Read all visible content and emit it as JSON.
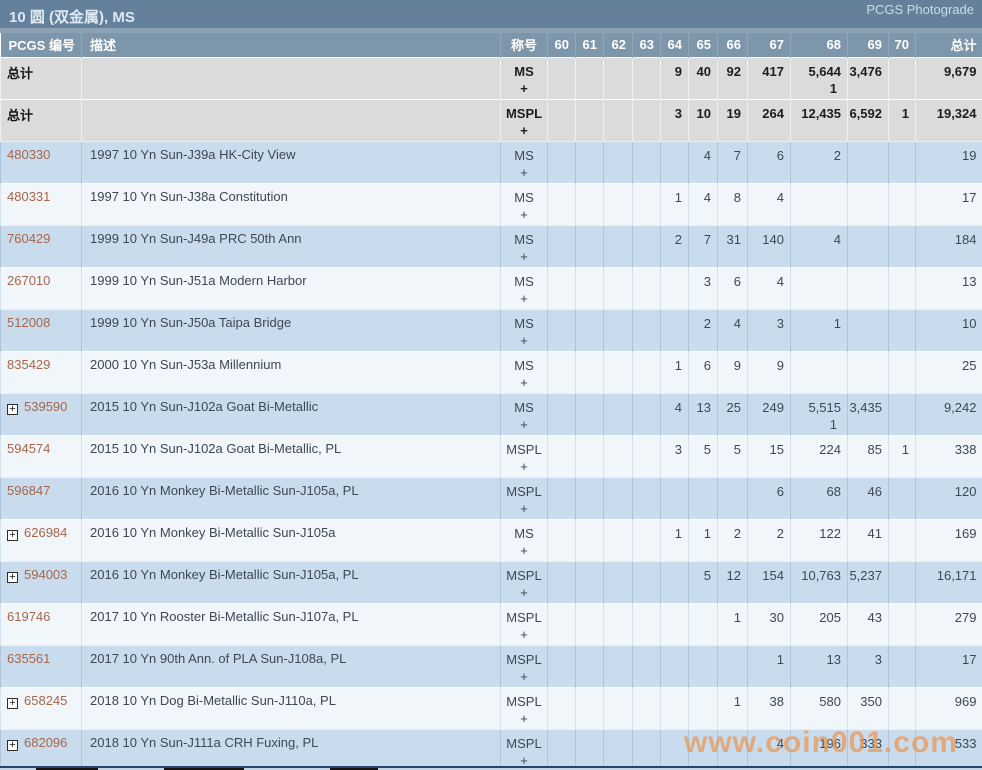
{
  "title_bar": {
    "title": "10 圆 (双金属), MS",
    "photograde": "PCGS Photograde"
  },
  "table": {
    "columns": {
      "pcgs": "PCGS 编号",
      "desc": "描述",
      "designation": "称号",
      "grades": [
        "60",
        "61",
        "62",
        "63",
        "64",
        "65",
        "66",
        "67",
        "68",
        "69",
        "70"
      ],
      "total": "总计"
    },
    "plus": "+",
    "rows": [
      {
        "kind": "total",
        "pcgs": "总计",
        "expand": false,
        "desc": "",
        "designation": "MS",
        "values": {
          "64": "9",
          "65": "40",
          "66": "92",
          "67": "417",
          "68": "5,644",
          "69": "3,476"
        },
        "plus_values": {
          "68": "1"
        },
        "total": "9,679"
      },
      {
        "kind": "total",
        "pcgs": "总计",
        "expand": false,
        "desc": "",
        "designation": "MSPL",
        "values": {
          "64": "3",
          "65": "10",
          "66": "19",
          "67": "264",
          "68": "12,435",
          "69": "6,592",
          "70": "1"
        },
        "plus_values": {},
        "total": "19,324"
      },
      {
        "kind": "data",
        "pcgs": "480330",
        "expand": false,
        "desc": "1997 10 Yn Sun-J39a HK-City View",
        "designation": "MS",
        "values": {
          "65": "4",
          "66": "7",
          "67": "6",
          "68": "2"
        },
        "plus_values": {},
        "total": "19"
      },
      {
        "kind": "data",
        "pcgs": "480331",
        "expand": false,
        "desc": "1997 10 Yn Sun-J38a Constitution",
        "designation": "MS",
        "values": {
          "64": "1",
          "65": "4",
          "66": "8",
          "67": "4"
        },
        "plus_values": {},
        "total": "17"
      },
      {
        "kind": "data",
        "pcgs": "760429",
        "expand": false,
        "desc": "1999 10 Yn Sun-J49a PRC 50th Ann",
        "designation": "MS",
        "values": {
          "64": "2",
          "65": "7",
          "66": "31",
          "67": "140",
          "68": "4"
        },
        "plus_values": {},
        "total": "184"
      },
      {
        "kind": "data",
        "pcgs": "267010",
        "expand": false,
        "desc": "1999 10 Yn Sun-J51a Modern Harbor",
        "designation": "MS",
        "values": {
          "65": "3",
          "66": "6",
          "67": "4"
        },
        "plus_values": {},
        "total": "13"
      },
      {
        "kind": "data",
        "pcgs": "512008",
        "expand": false,
        "desc": "1999 10 Yn Sun-J50a Taipa Bridge",
        "designation": "MS",
        "values": {
          "65": "2",
          "66": "4",
          "67": "3",
          "68": "1"
        },
        "plus_values": {},
        "total": "10"
      },
      {
        "kind": "data",
        "pcgs": "835429",
        "expand": false,
        "desc": "2000 10 Yn Sun-J53a Millennium",
        "designation": "MS",
        "values": {
          "64": "1",
          "65": "6",
          "66": "9",
          "67": "9"
        },
        "plus_values": {},
        "total": "25"
      },
      {
        "kind": "data",
        "pcgs": "539590",
        "expand": true,
        "desc": "2015 10 Yn Sun-J102a Goat Bi-Metallic",
        "designation": "MS",
        "values": {
          "64": "4",
          "65": "13",
          "66": "25",
          "67": "249",
          "68": "5,515",
          "69": "3,435"
        },
        "plus_values": {
          "68": "1"
        },
        "total": "9,242"
      },
      {
        "kind": "data",
        "pcgs": "594574",
        "expand": false,
        "desc": "2015 10 Yn Sun-J102a Goat Bi-Metallic, PL",
        "designation": "MSPL",
        "values": {
          "64": "3",
          "65": "5",
          "66": "5",
          "67": "15",
          "68": "224",
          "69": "85",
          "70": "1"
        },
        "plus_values": {},
        "total": "338"
      },
      {
        "kind": "data",
        "pcgs": "596847",
        "expand": false,
        "desc": "2016 10 Yn Monkey Bi-Metallic Sun-J105a, PL",
        "designation": "MSPL",
        "values": {
          "67": "6",
          "68": "68",
          "69": "46"
        },
        "plus_values": {},
        "total": "120"
      },
      {
        "kind": "data",
        "pcgs": "626984",
        "expand": true,
        "desc": "2016 10 Yn Monkey Bi-Metallic Sun-J105a",
        "designation": "MS",
        "values": {
          "64": "1",
          "65": "1",
          "66": "2",
          "67": "2",
          "68": "122",
          "69": "41"
        },
        "plus_values": {},
        "total": "169"
      },
      {
        "kind": "data",
        "pcgs": "594003",
        "expand": true,
        "desc": "2016 10 Yn Monkey Bi-Metallic Sun-J105a, PL",
        "designation": "MSPL",
        "values": {
          "65": "5",
          "66": "12",
          "67": "154",
          "68": "10,763",
          "69": "5,237"
        },
        "plus_values": {},
        "total": "16,171"
      },
      {
        "kind": "data",
        "pcgs": "619746",
        "expand": false,
        "desc": "2017 10 Yn Rooster Bi-Metallic Sun-J107a, PL",
        "designation": "MSPL",
        "values": {
          "66": "1",
          "67": "30",
          "68": "205",
          "69": "43"
        },
        "plus_values": {},
        "total": "279"
      },
      {
        "kind": "data",
        "pcgs": "635561",
        "expand": false,
        "desc": "2017 10 Yn 90th Ann. of PLA Sun-J108a, PL",
        "designation": "MSPL",
        "values": {
          "67": "1",
          "68": "13",
          "69": "3"
        },
        "plus_values": {},
        "total": "17"
      },
      {
        "kind": "data",
        "pcgs": "658245",
        "expand": true,
        "desc": "2018 10 Yn Dog Bi-Metallic Sun-J110a, PL",
        "designation": "MSPL",
        "values": {
          "66": "1",
          "67": "38",
          "68": "580",
          "69": "350"
        },
        "plus_values": {},
        "total": "969"
      },
      {
        "kind": "data",
        "pcgs": "682096",
        "expand": true,
        "desc": "2018 10 Yn Sun-J111a CRH Fuxing, PL",
        "designation": "MSPL",
        "values": {
          "67": "4",
          "68": "196",
          "69": "333"
        },
        "plus_values": {},
        "total": "533"
      }
    ]
  },
  "watermark": "www.coin001.com",
  "colors": {
    "title_bar_bg": "#64809b",
    "header_bg": "#7e96aa",
    "row_blue": "#c9dcee",
    "row_white": "#f1f6fa",
    "row_gray": "#dbdbdb",
    "pcgs_link": "#a5664a",
    "watermark": "#f08b38",
    "bottom_border": "#27466f"
  }
}
